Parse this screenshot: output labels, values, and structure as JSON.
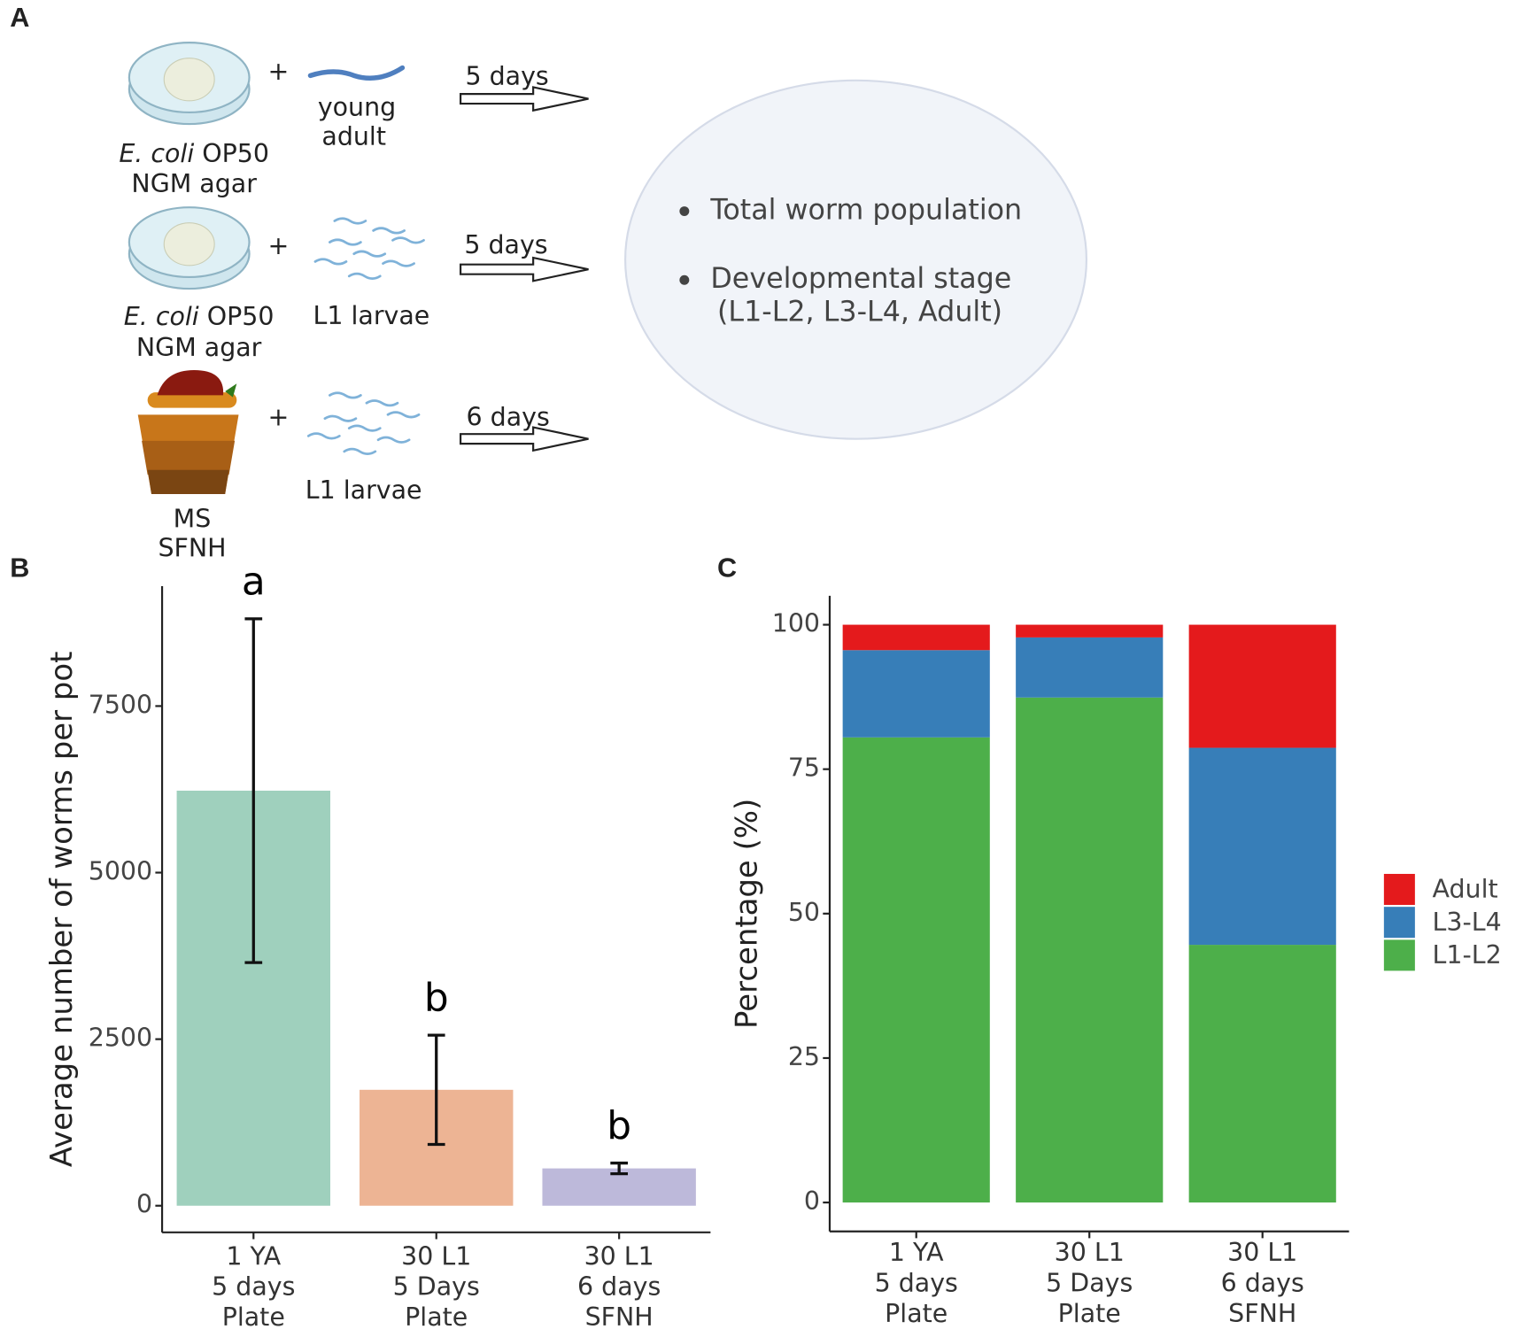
{
  "diagram": {
    "label": "A",
    "rows": [
      {
        "plus": "+",
        "organism": [
          "young",
          "adult"
        ],
        "duration": "5 days",
        "medium": [
          {
            "italic": "E. coli",
            "text": " OP50"
          },
          {
            "text": "NGM agar"
          }
        ]
      },
      {
        "plus": "+",
        "organism": [
          "L1 larvae"
        ],
        "duration": "5 days",
        "medium": [
          {
            "italic": "E. coli",
            "text": " OP50"
          },
          {
            "text": "NGM agar"
          }
        ]
      },
      {
        "plus": "+",
        "organism": [
          "L1 larvae"
        ],
        "duration": "6 days",
        "medium": [
          {
            "text": "MS"
          },
          {
            "text": "SFNH"
          }
        ]
      }
    ],
    "outcomes": [
      [
        "Total worm population"
      ],
      [
        "Developmental stage",
        "(L1-L2, L3-L4, Adult)"
      ]
    ]
  },
  "chart_data": [
    {
      "type": "bar",
      "panel": "B",
      "ylabel": "Average number of worms per pot",
      "categories": [
        [
          "1 YA",
          "5 days",
          "Plate"
        ],
        [
          "30 L1",
          "5 Days",
          "Plate"
        ],
        [
          "30 L1",
          "6 days",
          "SFNH"
        ]
      ],
      "values": [
        6230,
        1740,
        560
      ],
      "errors": [
        2580,
        820,
        80
      ],
      "colors": [
        "#9fd0bd",
        "#edb494",
        "#bdb9da"
      ],
      "annotations": [
        "a",
        "b",
        "b"
      ],
      "ylim": [
        -400,
        9300
      ],
      "yticks": [
        0,
        2500,
        5000,
        7500
      ]
    },
    {
      "type": "stacked_bar",
      "panel": "C",
      "ylabel": "Percentage (%)",
      "categories": [
        [
          "1 YA",
          "5 days",
          "Plate"
        ],
        [
          "30 L1",
          "5 Days",
          "Plate"
        ],
        [
          "30 L1",
          "6 days",
          "SFNH"
        ]
      ],
      "series": [
        {
          "name": "L1-L2",
          "color": "#4daf4a",
          "values": [
            80.5,
            87.4,
            44.6
          ]
        },
        {
          "name": "L3-L4",
          "color": "#377eb8",
          "values": [
            15.1,
            10.4,
            34.1
          ]
        },
        {
          "name": "Adult",
          "color": "#e41a1c",
          "values": [
            4.4,
            2.2,
            21.3
          ]
        }
      ],
      "ylim": [
        -5,
        105
      ],
      "yticks": [
        0,
        25,
        50,
        75,
        100
      ],
      "legend": "right"
    }
  ]
}
